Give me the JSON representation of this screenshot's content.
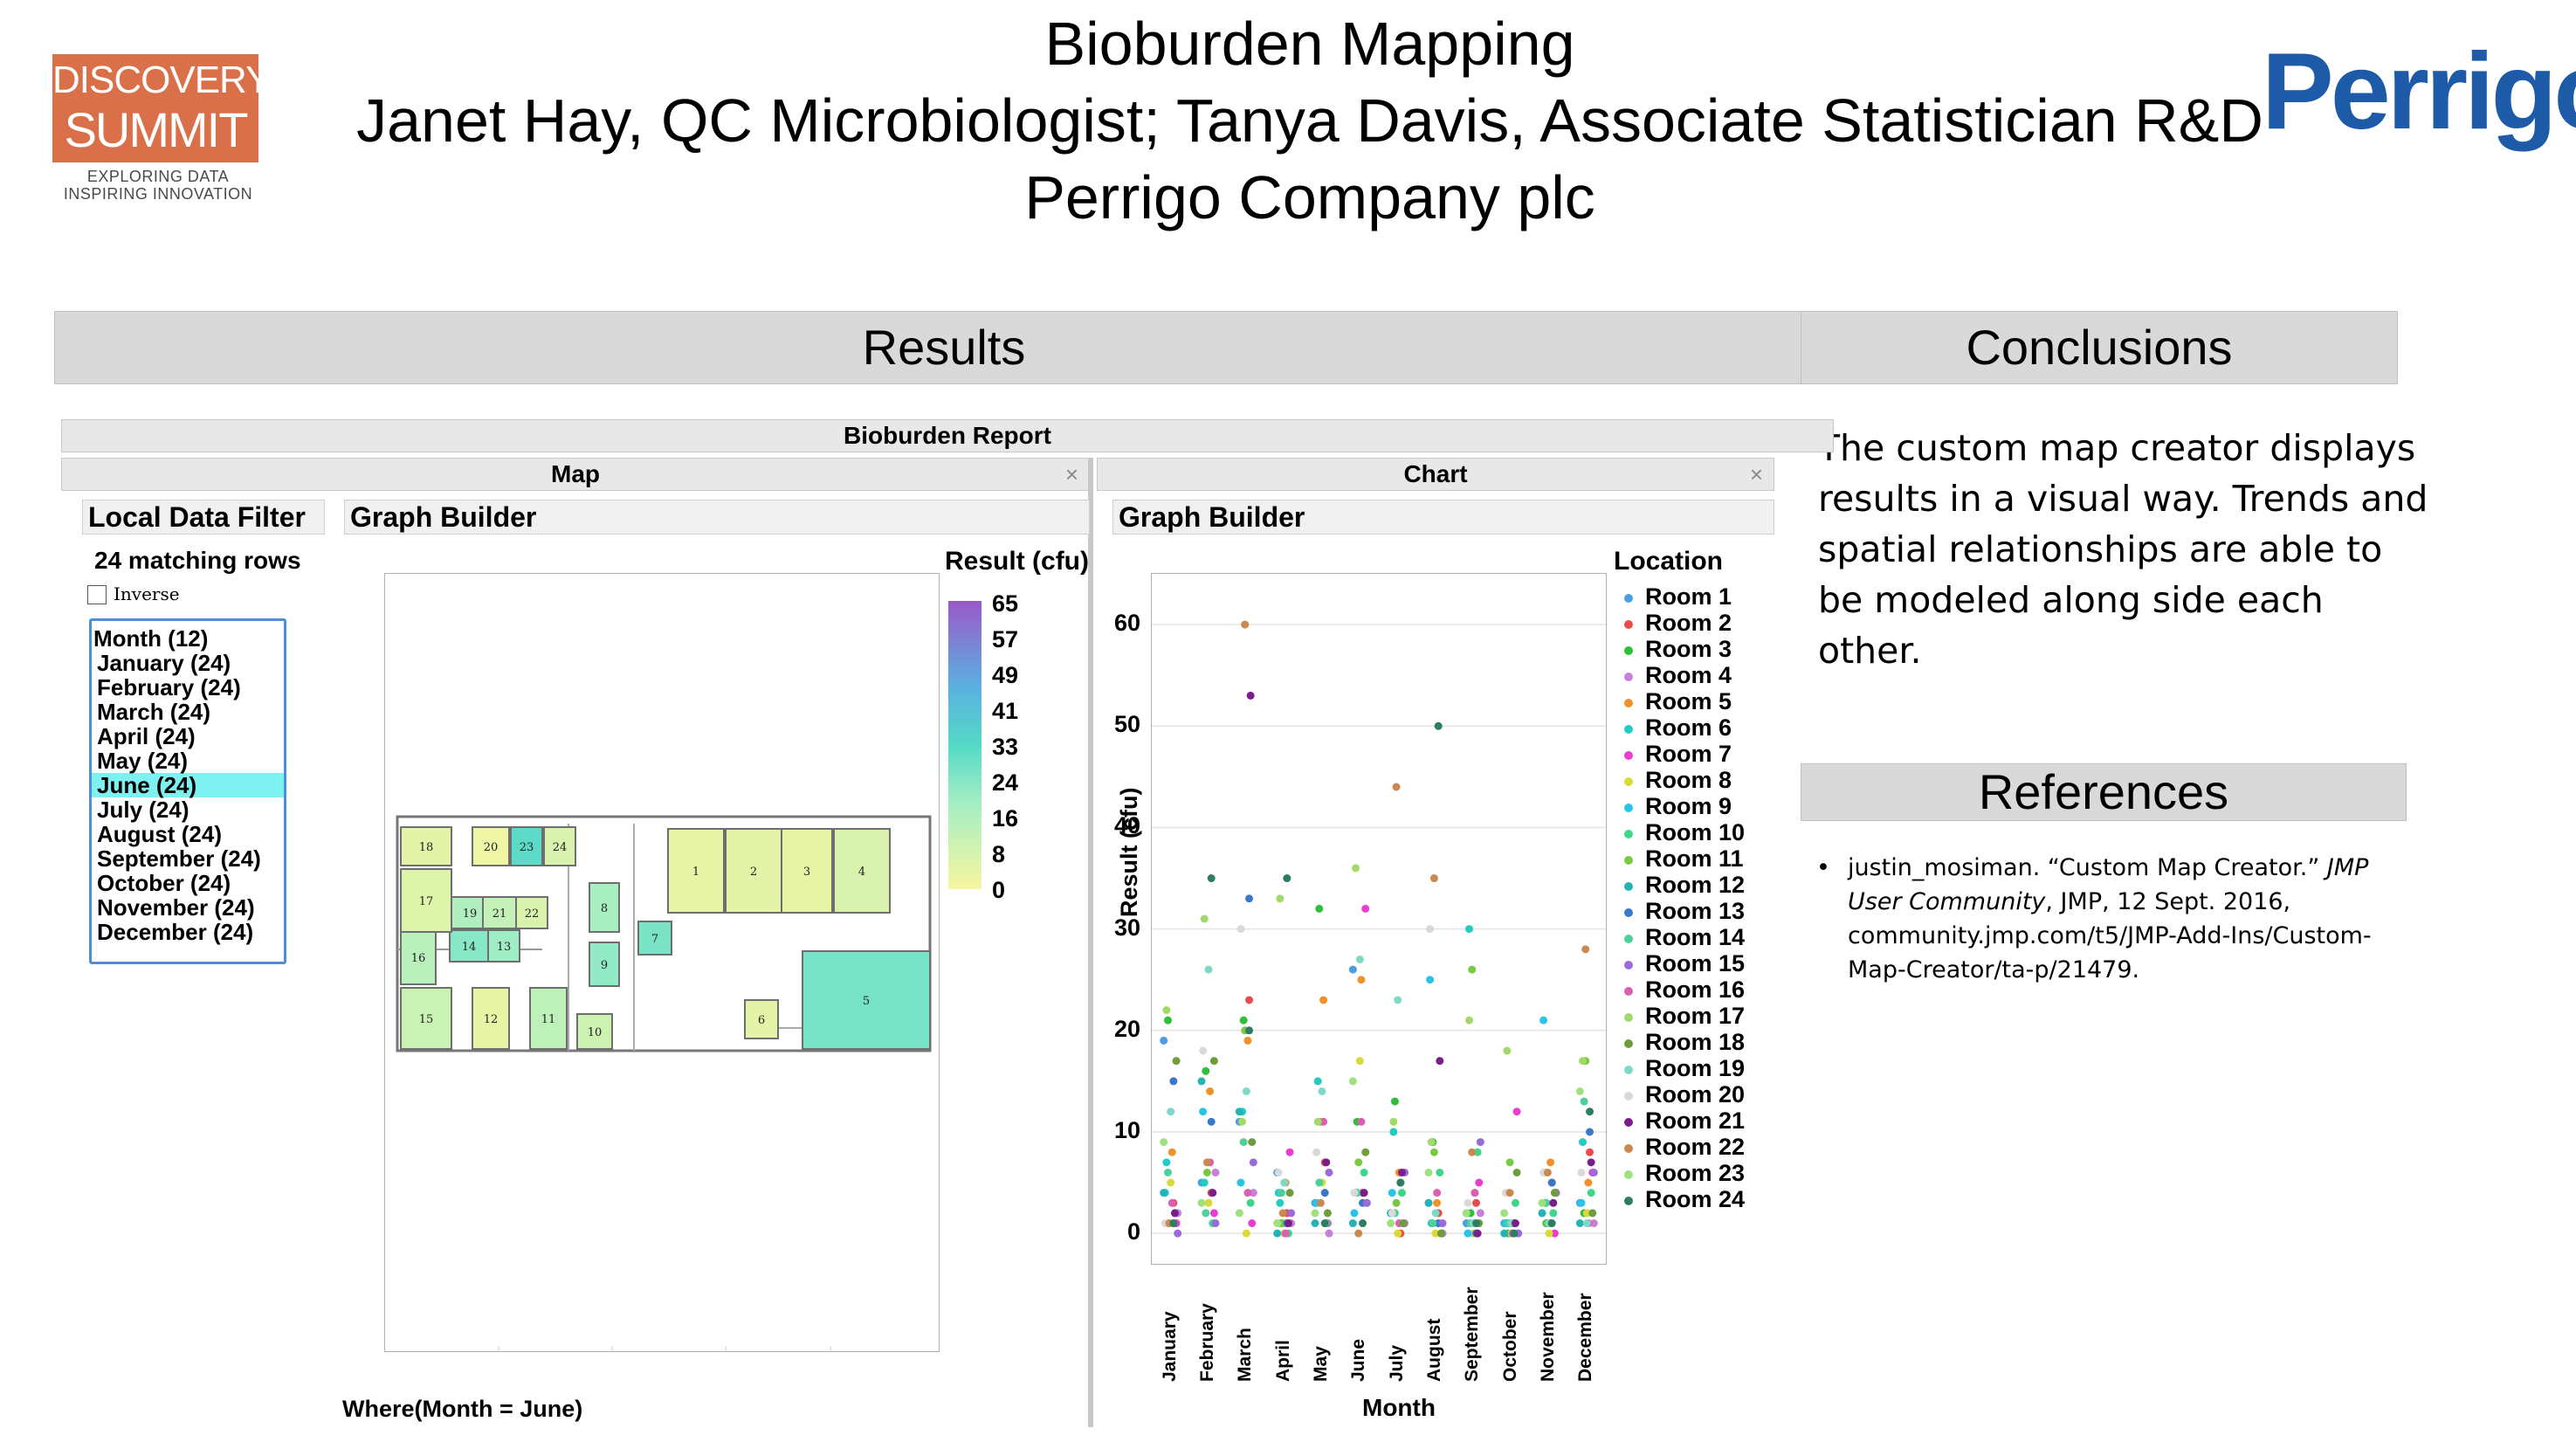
{
  "header": {
    "logo_left_line1": "DISCOVERY",
    "logo_left_line2": "SUMMIT",
    "logo_left_tag1": "EXPLORING DATA",
    "logo_left_tag2": "INSPIRING INNOVATION",
    "title_line1": "Bioburden Mapping",
    "title_line2": "Janet Hay, QC Microbiologist; Tanya Davis, Associate Statistician R&D",
    "title_line3": "Perrigo Company plc",
    "logo_right": "Perrigo",
    "logo_right_mark": "®"
  },
  "sections": {
    "results": "Results",
    "conclusions": "Conclusions",
    "references": "References"
  },
  "conclusions_text": "The custom map creator displays results in a visual way. Trends and spatial relationships are able to be modeled along side each other.",
  "references": {
    "bullet": "•",
    "author": "justin_mosiman. “Custom Map Creator.” ",
    "source": "JMP User Community",
    "rest": ", JMP, 12 Sept. 2016, community.jmp.com/t5/JMP-Add-Ins/Custom-Map-Creator/ta-p/21479."
  },
  "report": {
    "title": "Bioburden Report",
    "map_tab": "Map",
    "chart_tab": "Chart",
    "close_glyph": "×",
    "local_data_filter": "Local Data Filter",
    "graph_builder": "Graph Builder",
    "matching_rows": "24 matching rows",
    "inverse": "Inverse",
    "filter_header": "Month (12)",
    "months": [
      "January (24)",
      "February (24)",
      "March (24)",
      "April (24)",
      "May (24)",
      "June (24)",
      "July (24)",
      "August (24)",
      "September (24)",
      "October (24)",
      "November (24)",
      "December (24)"
    ],
    "selected_month_index": 5,
    "where": "Where(Month = June)"
  },
  "map": {
    "legend_title": "Result (cfu)",
    "legend_ticks": [
      "65",
      "57",
      "49",
      "41",
      "33",
      "24",
      "16",
      "8",
      "0"
    ],
    "rooms": [
      {
        "id": "1",
        "value": 3
      },
      {
        "id": "2",
        "value": 4
      },
      {
        "id": "3",
        "value": 3
      },
      {
        "id": "4",
        "value": 6
      },
      {
        "id": "5",
        "value": 26
      },
      {
        "id": "6",
        "value": 4
      },
      {
        "id": "7",
        "value": 25
      },
      {
        "id": "8",
        "value": 15
      },
      {
        "id": "9",
        "value": 20
      },
      {
        "id": "10",
        "value": 8
      },
      {
        "id": "11",
        "value": 11
      },
      {
        "id": "12",
        "value": 3
      },
      {
        "id": "13",
        "value": 17
      },
      {
        "id": "14",
        "value": 22
      },
      {
        "id": "15",
        "value": 9
      },
      {
        "id": "16",
        "value": 12
      },
      {
        "id": "17",
        "value": 5
      },
      {
        "id": "18",
        "value": 4
      },
      {
        "id": "19",
        "value": 14
      },
      {
        "id": "20",
        "value": 2
      },
      {
        "id": "21",
        "value": 10
      },
      {
        "id": "22",
        "value": 6
      },
      {
        "id": "23",
        "value": 32
      },
      {
        "id": "24",
        "value": 6
      }
    ]
  },
  "chart_data": {
    "type": "scatter",
    "xlabel": "Month",
    "ylabel": "Result (cfu)",
    "ylim": [
      -3,
      65
    ],
    "yticks": [
      0,
      10,
      20,
      30,
      40,
      50,
      60
    ],
    "categories": [
      "January",
      "February",
      "March",
      "April",
      "May",
      "June",
      "July",
      "August",
      "September",
      "October",
      "November",
      "December"
    ],
    "legend_title": "Location",
    "legend_placement": "right",
    "series": [
      {
        "name": "Room 1",
        "color": "#4e9de0",
        "values": [
          19,
          5,
          11,
          6,
          3,
          26,
          2,
          3,
          1,
          1,
          2,
          3
        ]
      },
      {
        "name": "Room 2",
        "color": "#e84c4c",
        "values": [
          3,
          4,
          23,
          2,
          7,
          4,
          0,
          2,
          3,
          1,
          5,
          8
        ]
      },
      {
        "name": "Room 3",
        "color": "#2fbf3a",
        "values": [
          21,
          16,
          21,
          1,
          32,
          11,
          13,
          9,
          2,
          0,
          1,
          2
        ]
      },
      {
        "name": "Room 4",
        "color": "#c77fd9",
        "values": [
          2,
          6,
          4,
          1,
          0,
          3,
          1,
          0,
          2,
          0,
          4,
          1
        ]
      },
      {
        "name": "Room 5",
        "color": "#f0922a",
        "values": [
          8,
          14,
          19,
          5,
          23,
          25,
          6,
          3,
          4,
          1,
          7,
          5
        ]
      },
      {
        "name": "Room 6",
        "color": "#22cdbf",
        "values": [
          7,
          5,
          12,
          3,
          15,
          4,
          10,
          1,
          30,
          1,
          3,
          9
        ]
      },
      {
        "name": "Room 7",
        "color": "#e83fd0",
        "values": [
          1,
          2,
          1,
          8,
          1,
          32,
          1,
          0,
          5,
          12,
          0,
          6
        ]
      },
      {
        "name": "Room 8",
        "color": "#d9d93a",
        "values": [
          5,
          3,
          0,
          0,
          5,
          17,
          0,
          0,
          0,
          0,
          0,
          2
        ]
      },
      {
        "name": "Room 9",
        "color": "#29c4e8",
        "values": [
          4,
          12,
          5,
          4,
          3,
          2,
          4,
          25,
          0,
          1,
          21,
          3
        ]
      },
      {
        "name": "Room 10",
        "color": "#3fd68a",
        "values": [
          2,
          1,
          3,
          0,
          1,
          6,
          4,
          6,
          8,
          3,
          2,
          4
        ]
      },
      {
        "name": "Room 11",
        "color": "#7ac943",
        "values": [
          1,
          6,
          20,
          1,
          11,
          7,
          3,
          8,
          26,
          7,
          1,
          17
        ]
      },
      {
        "name": "Room 12",
        "color": "#26b3b3",
        "values": [
          4,
          15,
          12,
          0,
          1,
          1,
          2,
          3,
          2,
          0,
          2,
          1
        ]
      },
      {
        "name": "Room 13",
        "color": "#3a78c9",
        "values": [
          15,
          11,
          33,
          1,
          4,
          3,
          5,
          1,
          0,
          1,
          5,
          10
        ]
      },
      {
        "name": "Room 14",
        "color": "#4fcf9a",
        "values": [
          6,
          2,
          9,
          4,
          5,
          4,
          2,
          1,
          1,
          1,
          3,
          13
        ]
      },
      {
        "name": "Room 15",
        "color": "#9b6cd9",
        "values": [
          0,
          1,
          7,
          2,
          6,
          3,
          6,
          1,
          9,
          0,
          4,
          6
        ]
      },
      {
        "name": "Room 16",
        "color": "#d95fb3",
        "values": [
          3,
          7,
          4,
          0,
          11,
          11,
          1,
          4,
          4,
          0,
          1,
          1
        ]
      },
      {
        "name": "Room 17",
        "color": "#a3d96a",
        "values": [
          22,
          31,
          11,
          33,
          11,
          36,
          11,
          9,
          21,
          18,
          6,
          17
        ]
      },
      {
        "name": "Room 18",
        "color": "#6e9e3a",
        "values": [
          17,
          17,
          9,
          4,
          2,
          8,
          1,
          0,
          1,
          6,
          4,
          2
        ]
      },
      {
        "name": "Room 19",
        "color": "#7fd9c9",
        "values": [
          12,
          26,
          14,
          5,
          14,
          27,
          23,
          2,
          1,
          1,
          1,
          1
        ]
      },
      {
        "name": "Room 20",
        "color": "#d9d9d9",
        "values": [
          1,
          18,
          30,
          6,
          8,
          4,
          2,
          30,
          3,
          4,
          6,
          6
        ]
      },
      {
        "name": "Room 21",
        "color": "#7a1f8a",
        "values": [
          2,
          4,
          53,
          1,
          7,
          4,
          6,
          17,
          0,
          1,
          3,
          7
        ]
      },
      {
        "name": "Room 22",
        "color": "#c98a52",
        "values": [
          1,
          7,
          60,
          2,
          3,
          0,
          44,
          35,
          8,
          4,
          6,
          28
        ]
      },
      {
        "name": "Room 23",
        "color": "#9fe07f",
        "values": [
          9,
          3,
          2,
          1,
          2,
          15,
          1,
          6,
          2,
          2,
          3,
          14
        ]
      },
      {
        "name": "Room 24",
        "color": "#2e7d62",
        "values": [
          1,
          35,
          20,
          35,
          1,
          1,
          5,
          50,
          1,
          0,
          1,
          12
        ]
      }
    ]
  }
}
